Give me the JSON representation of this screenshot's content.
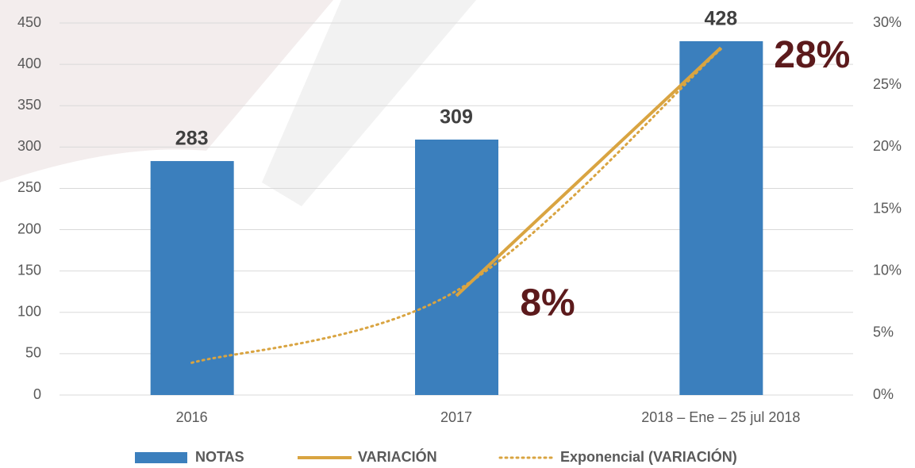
{
  "chart_data": {
    "type": "bar",
    "categories": [
      "2016",
      "2017",
      "2018 – Ene – 25 jul 2018"
    ],
    "series": [
      {
        "name": "NOTAS",
        "type": "bar",
        "color": "#3b7fbd",
        "label_color": "#404040",
        "values": [
          283,
          309,
          428
        ]
      },
      {
        "name": "VARIACIÓN",
        "type": "line",
        "axis": "y2",
        "color": "#d9a441",
        "label_color": "#5c1a1c",
        "values": [
          null,
          8,
          28
        ],
        "value_labels": [
          null,
          "8%",
          "28%"
        ]
      },
      {
        "name": "Exponencial (VARIACIÓN)",
        "type": "line",
        "style": "dotted",
        "axis": "y2",
        "color": "#d9a441",
        "values": [
          2.6,
          8.4,
          27.9
        ]
      }
    ],
    "ylim": [
      0,
      450
    ],
    "yticks": [
      0,
      50,
      100,
      150,
      200,
      250,
      300,
      350,
      400,
      450
    ],
    "y2lim": [
      0,
      30
    ],
    "y2ticks": [
      {
        "value": 0,
        "label": "0%"
      },
      {
        "value": 5,
        "label": "5%"
      },
      {
        "value": 10,
        "label": "10%"
      },
      {
        "value": 15,
        "label": "15%"
      },
      {
        "value": 20,
        "label": "20%"
      },
      {
        "value": 25,
        "label": "25%"
      },
      {
        "value": 30,
        "label": "30%"
      }
    ],
    "grid": true,
    "legend": "bottom"
  }
}
